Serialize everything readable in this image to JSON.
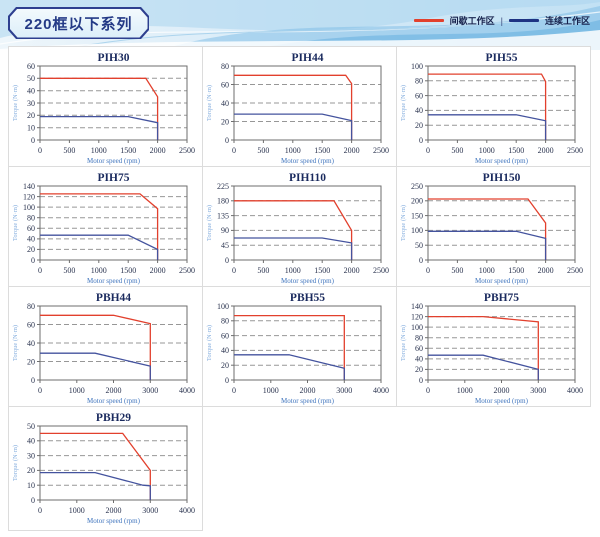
{
  "header": {
    "title": "220框以下系列",
    "legend": {
      "intermittent_label": "间歇工作区",
      "separator": "|",
      "continuous_label": "连续工作区"
    }
  },
  "colors": {
    "intermittent": "#e2402d",
    "continuous": "#44539e",
    "legend_continuous": "#1e3383",
    "grid_dash": "#979797",
    "frame": "#6e6e6e"
  },
  "chart_data": [
    {
      "type": "line",
      "title": "PIH30",
      "xlabel": "Motor speed (rpm)",
      "ylabel": "Torque (N·m)",
      "xlim": [
        0,
        2500
      ],
      "xticks": [
        0,
        500,
        1000,
        1500,
        2000,
        2500
      ],
      "ylim": [
        0,
        60
      ],
      "yticks": [
        0,
        10,
        20,
        30,
        40,
        50,
        60
      ],
      "series": [
        {
          "name": "间歇工作区",
          "role": "intermittent",
          "points": [
            [
              0,
              50
            ],
            [
              1800,
              50
            ],
            [
              2000,
              35
            ],
            [
              2000,
              0
            ]
          ]
        },
        {
          "name": "连续工作区",
          "role": "continuous",
          "points": [
            [
              0,
              19
            ],
            [
              1500,
              19
            ],
            [
              2000,
              14
            ],
            [
              2000,
              0
            ]
          ]
        }
      ]
    },
    {
      "type": "line",
      "title": "PIH44",
      "xlabel": "Motor speed (rpm)",
      "ylabel": "Torque (N·m)",
      "xlim": [
        0,
        2500
      ],
      "xticks": [
        0,
        500,
        1000,
        1500,
        2000,
        2500
      ],
      "ylim": [
        0,
        80
      ],
      "yticks": [
        0,
        20,
        40,
        60,
        80
      ],
      "series": [
        {
          "name": "间歇工作区",
          "role": "intermittent",
          "points": [
            [
              0,
              70
            ],
            [
              1900,
              70
            ],
            [
              2000,
              61
            ],
            [
              2000,
              0
            ]
          ]
        },
        {
          "name": "连续工作区",
          "role": "continuous",
          "points": [
            [
              0,
              28
            ],
            [
              1500,
              28
            ],
            [
              2000,
              21
            ],
            [
              2000,
              0
            ]
          ]
        }
      ]
    },
    {
      "type": "line",
      "title": "PIH55",
      "xlabel": "Motor speed (rpm)",
      "ylabel": "Torque (N·m)",
      "xlim": [
        0,
        2500
      ],
      "xticks": [
        0,
        500,
        1000,
        1500,
        2000,
        2500
      ],
      "ylim": [
        0,
        100
      ],
      "yticks": [
        0,
        20,
        40,
        60,
        80,
        100
      ],
      "series": [
        {
          "name": "间歇工作区",
          "role": "intermittent",
          "points": [
            [
              0,
              89
            ],
            [
              1930,
              89
            ],
            [
              2000,
              79
            ],
            [
              2000,
              0
            ]
          ]
        },
        {
          "name": "连续工作区",
          "role": "continuous",
          "points": [
            [
              0,
              34
            ],
            [
              1500,
              34
            ],
            [
              2000,
              26
            ],
            [
              2000,
              0
            ]
          ]
        }
      ]
    },
    {
      "type": "line",
      "title": "PIH75",
      "xlabel": "Motor speed (rpm)",
      "ylabel": "Torque (N·m)",
      "xlim": [
        0,
        2500
      ],
      "xticks": [
        0,
        500,
        1000,
        1500,
        2000,
        2500
      ],
      "ylim": [
        0,
        140
      ],
      "yticks": [
        0,
        20,
        40,
        60,
        80,
        100,
        120,
        140
      ],
      "series": [
        {
          "name": "间歇工作区",
          "role": "intermittent",
          "points": [
            [
              0,
              125
            ],
            [
              1700,
              125
            ],
            [
              2000,
              97
            ],
            [
              2000,
              0
            ]
          ]
        },
        {
          "name": "连续工作区",
          "role": "continuous",
          "points": [
            [
              0,
              47
            ],
            [
              1500,
              47
            ],
            [
              2000,
              20
            ],
            [
              2000,
              0
            ]
          ]
        }
      ]
    },
    {
      "type": "line",
      "title": "PIH110",
      "xlabel": "Motor speed (rpm)",
      "ylabel": "Torque (N·m)",
      "xlim": [
        0,
        2500
      ],
      "xticks": [
        0,
        500,
        1000,
        1500,
        2000,
        2500
      ],
      "ylim": [
        0,
        225
      ],
      "yticks": [
        0,
        45,
        90,
        135,
        180,
        225
      ],
      "series": [
        {
          "name": "间歇工作区",
          "role": "intermittent",
          "points": [
            [
              0,
              180
            ],
            [
              1700,
              180
            ],
            [
              2000,
              90
            ],
            [
              2000,
              0
            ]
          ]
        },
        {
          "name": "连续工作区",
          "role": "continuous",
          "points": [
            [
              0,
              67
            ],
            [
              1500,
              67
            ],
            [
              2000,
              52
            ],
            [
              2000,
              0
            ]
          ]
        }
      ]
    },
    {
      "type": "line",
      "title": "PIH150",
      "xlabel": "Motor speed (rpm)",
      "ylabel": "Torque (N·m)",
      "xlim": [
        0,
        2500
      ],
      "xticks": [
        0,
        500,
        1000,
        1500,
        2000,
        2500
      ],
      "ylim": [
        0,
        250
      ],
      "yticks": [
        0,
        50,
        100,
        150,
        200,
        250
      ],
      "series": [
        {
          "name": "间歇工作区",
          "role": "intermittent",
          "points": [
            [
              0,
              206
            ],
            [
              1700,
              206
            ],
            [
              2000,
              125
            ],
            [
              2000,
              0
            ]
          ]
        },
        {
          "name": "连续工作区",
          "role": "continuous",
          "points": [
            [
              0,
              97
            ],
            [
              1500,
              97
            ],
            [
              2000,
              73
            ],
            [
              2000,
              0
            ]
          ]
        }
      ]
    },
    {
      "type": "line",
      "title": "PBH44",
      "xlabel": "Motor speed (rpm)",
      "ylabel": "Torque (N·m)",
      "xlim": [
        0,
        4000
      ],
      "xticks": [
        0,
        1000,
        2000,
        3000,
        4000
      ],
      "ylim": [
        0,
        80
      ],
      "yticks": [
        0,
        20,
        40,
        60,
        80
      ],
      "series": [
        {
          "name": "间歇工作区",
          "role": "intermittent",
          "points": [
            [
              0,
              70
            ],
            [
              2000,
              70
            ],
            [
              3000,
              61
            ],
            [
              3000,
              0
            ]
          ]
        },
        {
          "name": "连续工作区",
          "role": "continuous",
          "points": [
            [
              0,
              29
            ],
            [
              1500,
              29
            ],
            [
              3000,
              15
            ],
            [
              3000,
              0
            ]
          ]
        }
      ]
    },
    {
      "type": "line",
      "title": "PBH55",
      "xlabel": "Motor speed (rpm)",
      "ylabel": "Torque (N·m)",
      "xlim": [
        0,
        4000
      ],
      "xticks": [
        0,
        1000,
        2000,
        3000,
        4000
      ],
      "ylim": [
        0,
        100
      ],
      "yticks": [
        0,
        20,
        40,
        60,
        80,
        100
      ],
      "series": [
        {
          "name": "间歇工作区",
          "role": "intermittent",
          "points": [
            [
              0,
              87
            ],
            [
              3000,
              87
            ],
            [
              3000,
              0
            ]
          ]
        },
        {
          "name": "连续工作区",
          "role": "continuous",
          "points": [
            [
              0,
              34
            ],
            [
              1500,
              34
            ],
            [
              3000,
              16
            ],
            [
              3000,
              0
            ]
          ]
        }
      ]
    },
    {
      "type": "line",
      "title": "PBH75",
      "xlabel": "Motor speed (rpm)",
      "ylabel": "Torque (N·m)",
      "xlim": [
        0,
        4000
      ],
      "xticks": [
        0,
        1000,
        2000,
        3000,
        4000
      ],
      "ylim": [
        0,
        140
      ],
      "yticks": [
        0,
        20,
        40,
        60,
        80,
        100,
        120,
        140
      ],
      "series": [
        {
          "name": "间歇工作区",
          "role": "intermittent",
          "points": [
            [
              0,
              120
            ],
            [
              1500,
              120
            ],
            [
              3000,
              110
            ],
            [
              3000,
              0
            ]
          ]
        },
        {
          "name": "连续工作区",
          "role": "continuous",
          "points": [
            [
              0,
              47
            ],
            [
              1500,
              47
            ],
            [
              3000,
              20
            ],
            [
              3000,
              0
            ]
          ]
        }
      ]
    },
    {
      "type": "line",
      "title": "PBH29",
      "xlabel": "Motor speed (rpm)",
      "ylabel": "Torque (N·m)",
      "xlim": [
        0,
        4000
      ],
      "xticks": [
        0,
        1000,
        2000,
        3000,
        4000
      ],
      "ylim": [
        0,
        50
      ],
      "yticks": [
        0,
        10,
        20,
        30,
        40,
        50
      ],
      "series": [
        {
          "name": "间歇工作区",
          "role": "intermittent",
          "points": [
            [
              0,
              45
            ],
            [
              2250,
              45
            ],
            [
              3000,
              20
            ],
            [
              3000,
              0
            ]
          ]
        },
        {
          "name": "连续工作区",
          "role": "continuous",
          "points": [
            [
              0,
              18.5
            ],
            [
              1500,
              18.5
            ],
            [
              2800,
              10
            ],
            [
              3000,
              9.5
            ],
            [
              3000,
              0
            ]
          ]
        }
      ]
    }
  ]
}
